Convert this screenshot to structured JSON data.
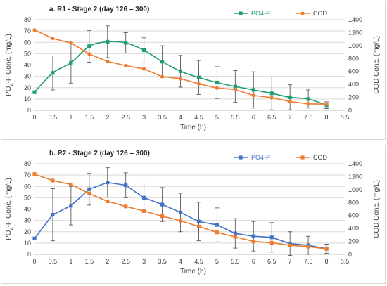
{
  "chart_data": [
    {
      "type": "line",
      "title": "a. R1 - Stage 2 (day 126 – 300)",
      "xlabel": "Time (h)",
      "ylabel": "PO4-P Conc. (mg/L)",
      "ylabel_sub": "4",
      "y2label": "COD Conc. (mg/L)",
      "x_ticks": [
        "0",
        "0.5",
        "1",
        "1.5",
        "2",
        "2.5",
        "3",
        "3.5",
        "4",
        "4.5",
        "5",
        "5.5",
        "6",
        "6.5",
        "7",
        "7.5",
        "8",
        "8.5"
      ],
      "xlim": [
        0,
        8.5
      ],
      "ylim": [
        0,
        80
      ],
      "y_ticks": [
        0,
        10,
        20,
        30,
        40,
        50,
        60,
        70,
        80
      ],
      "y2lim": [
        0,
        1400
      ],
      "y2_ticks": [
        0,
        200,
        400,
        600,
        800,
        1000,
        1200,
        1400
      ],
      "legend_position": "top-right",
      "series": [
        {
          "name": "PO4-P",
          "axis": "left",
          "color": "#1f9e6e",
          "marker": "square",
          "smooth": true,
          "x": [
            0,
            0.5,
            1,
            1.5,
            2,
            2.5,
            3,
            3.5,
            4,
            4.5,
            5,
            5.5,
            6,
            6.5,
            7,
            7.5,
            8
          ],
          "values": [
            16,
            33,
            42,
            56.5,
            60.5,
            59.5,
            53,
            43,
            34.5,
            29,
            24.5,
            21,
            18,
            15,
            11.5,
            10,
            4.5
          ],
          "error": [
            0,
            15,
            18,
            14,
            14,
            9,
            11,
            14,
            14,
            15,
            14,
            14,
            16,
            14.5,
            11,
            8,
            3
          ]
        },
        {
          "name": "COD",
          "axis": "right",
          "color": "#ed7d31",
          "marker": "circle",
          "smooth": false,
          "x": [
            0,
            0.5,
            1,
            1.5,
            2,
            2.5,
            3,
            3.5,
            4,
            4.5,
            5,
            5.5,
            6,
            6.5,
            7,
            7.5,
            8
          ],
          "values": [
            1240,
            1110,
            1040,
            870,
            755,
            690,
            640,
            520,
            490,
            410,
            345,
            320,
            230,
            195,
            135,
            100,
            95
          ],
          "error": []
        }
      ]
    },
    {
      "type": "line",
      "title": "b. R2 - Stage 2 (day 126 – 300)",
      "xlabel": "Time (h)",
      "ylabel": "PO4-P Conc. (mg/L)",
      "ylabel_sub": "4",
      "y2label": "COD Conc. (mg/L)",
      "x_ticks": [
        "0",
        "0.5",
        "1",
        "1.5",
        "2",
        "2.5",
        "3",
        "3.5",
        "4",
        "4.5",
        "5",
        "5.5",
        "6",
        "6.5",
        "7",
        "7.5",
        "8",
        "8.5"
      ],
      "xlim": [
        0,
        8.5
      ],
      "ylim": [
        0,
        80
      ],
      "y_ticks": [
        0,
        10,
        20,
        30,
        40,
        50,
        60,
        70,
        80
      ],
      "y2lim": [
        0,
        1400
      ],
      "y2_ticks": [
        0,
        200,
        400,
        600,
        800,
        1000,
        1200,
        1400
      ],
      "legend_position": "top-right",
      "series": [
        {
          "name": "PO4-P",
          "axis": "left",
          "color": "#4472c4",
          "marker": "square",
          "smooth": false,
          "x": [
            0,
            0.5,
            1,
            1.5,
            2,
            2.5,
            3,
            3.5,
            4,
            4.5,
            5,
            5.5,
            6,
            6.5,
            7,
            7.5,
            8
          ],
          "values": [
            14,
            35,
            43,
            57.5,
            63.5,
            61,
            50,
            44,
            37,
            29,
            26,
            18.5,
            16,
            15,
            9.5,
            8,
            5
          ],
          "error": [
            0,
            23,
            17,
            14,
            13,
            11,
            13,
            15,
            17,
            17,
            15,
            13,
            13,
            13,
            10.5,
            8,
            4
          ]
        },
        {
          "name": "COD",
          "axis": "right",
          "color": "#ed7d31",
          "marker": "square",
          "smooth": false,
          "x": [
            0,
            0.5,
            1,
            1.5,
            2,
            2.5,
            3,
            3.5,
            4,
            4.5,
            5,
            5.5,
            6,
            6.5,
            7,
            7.5,
            8
          ],
          "values": [
            1240,
            1140,
            1080,
            940,
            820,
            740,
            670,
            590,
            520,
            430,
            340,
            270,
            200,
            180,
            140,
            120,
            85
          ],
          "error": []
        }
      ]
    }
  ]
}
